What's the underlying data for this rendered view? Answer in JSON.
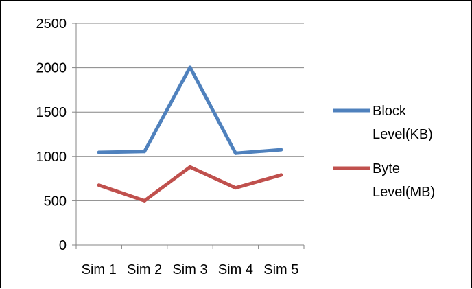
{
  "chart_data": {
    "type": "line",
    "categories": [
      "Sim 1",
      "Sim 2",
      "Sim 3",
      "Sim 4",
      "Sim 5"
    ],
    "series": [
      {
        "name": "Block Level(KB)",
        "name_lines": [
          "Block",
          "Level(KB)"
        ],
        "color": "#4f81bd",
        "values": [
          1045,
          1055,
          2005,
          1035,
          1075
        ]
      },
      {
        "name": "Byte Level(MB)",
        "name_lines": [
          "Byte",
          "Level(MB)"
        ],
        "color": "#c0504d",
        "values": [
          675,
          500,
          880,
          645,
          790
        ]
      }
    ],
    "ylim": [
      0,
      2500
    ],
    "yticks": [
      0,
      500,
      1000,
      1500,
      2000,
      2500
    ],
    "grid": "horizontal",
    "legend": "right",
    "title": "",
    "xlabel": "",
    "ylabel": ""
  }
}
